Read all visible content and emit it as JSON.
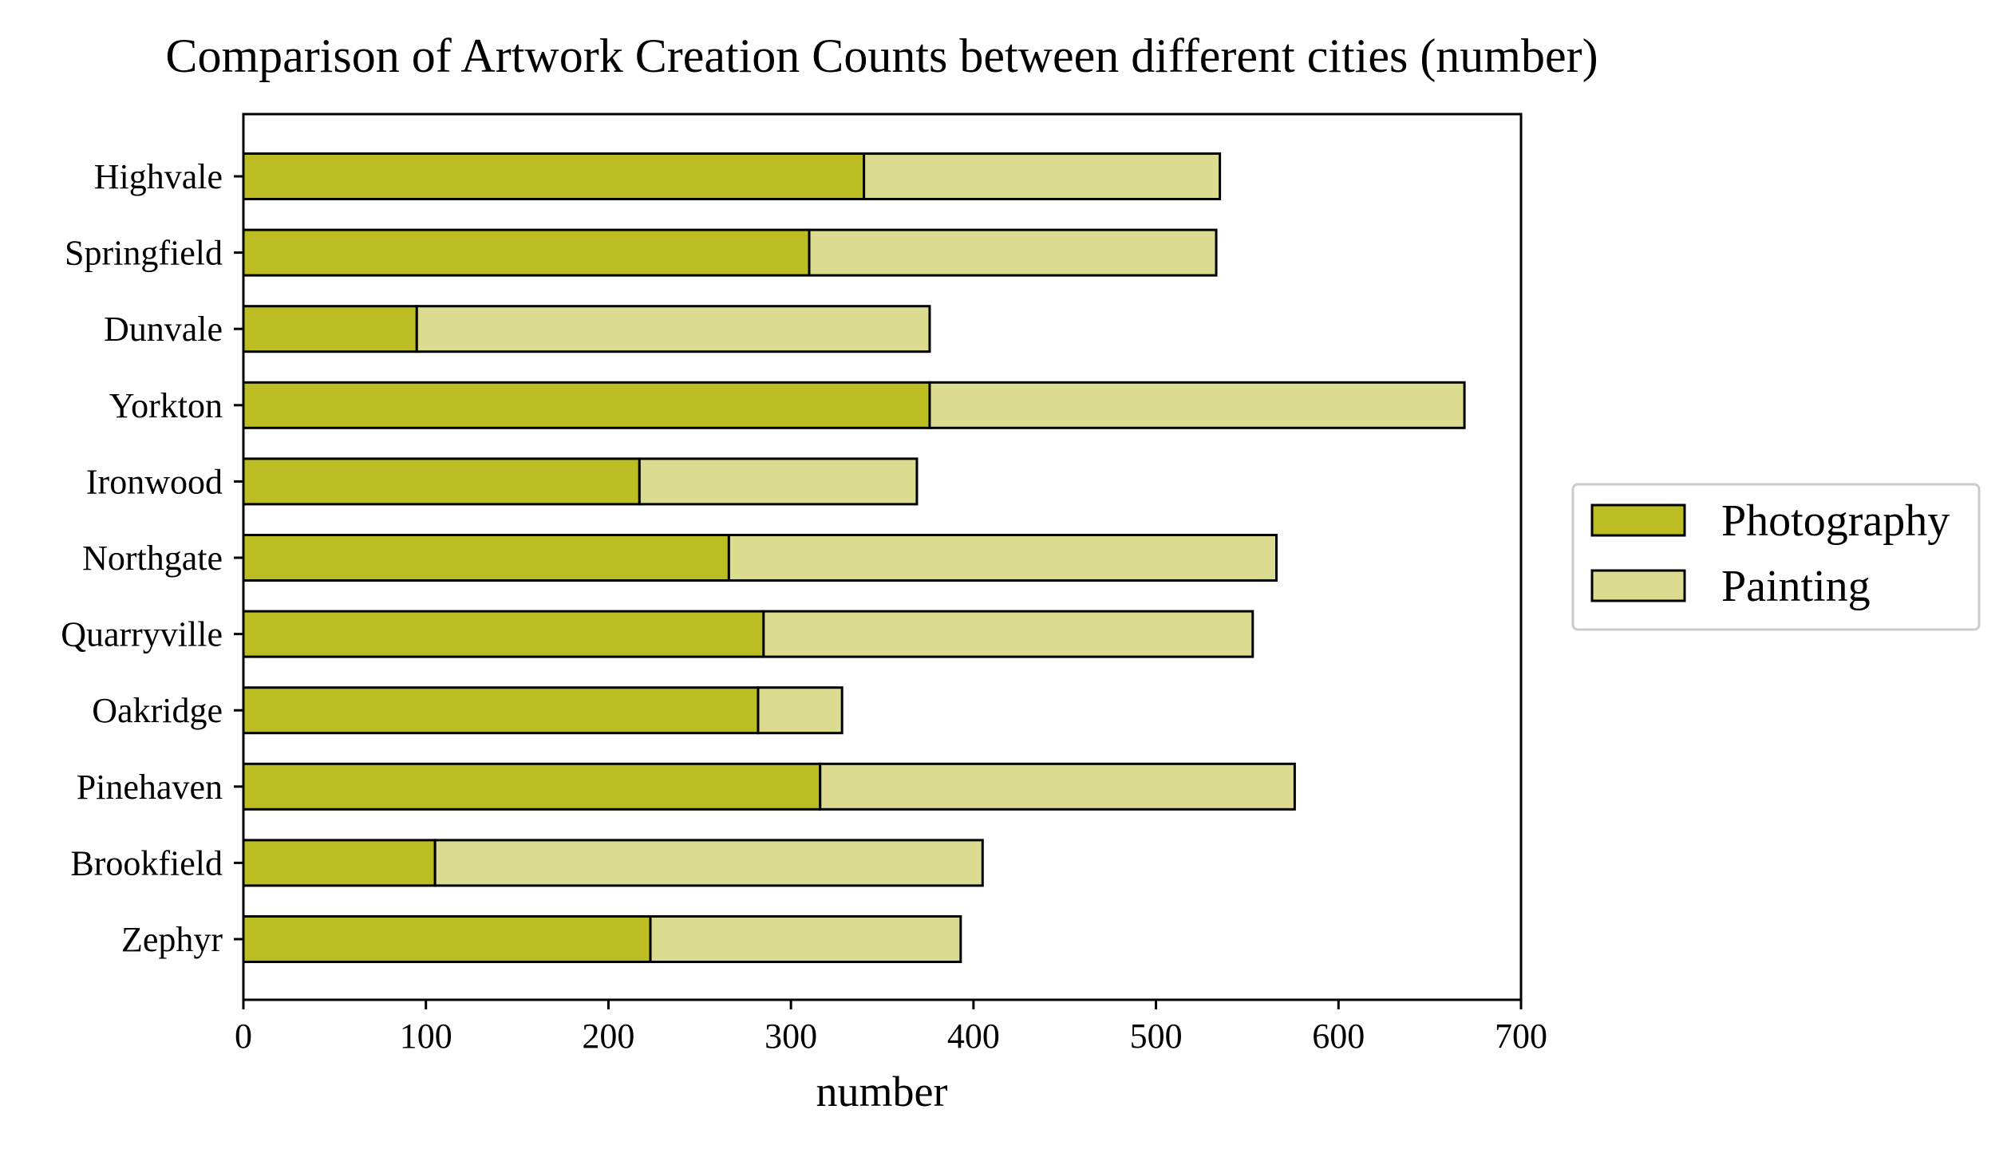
{
  "chart_data": {
    "type": "bar",
    "orientation": "horizontal",
    "stacked": true,
    "title": "Comparison of Artwork Creation Counts between different cities (number)",
    "xlabel": "number",
    "ylabel": "",
    "xlim": [
      0,
      700
    ],
    "xticks": [
      0,
      100,
      200,
      300,
      400,
      500,
      600,
      700
    ],
    "grid": false,
    "legend_position": "center-right outside",
    "categories": [
      "Highvale",
      "Springfield",
      "Dunvale",
      "Yorkton",
      "Ironwood",
      "Northgate",
      "Quarryville",
      "Oakridge",
      "Pinehaven",
      "Brookfield",
      "Zephyr"
    ],
    "series": [
      {
        "name": "Photography",
        "color": "#bcbd22",
        "values": [
          340,
          310,
          95,
          376,
          217,
          266,
          285,
          282,
          316,
          105,
          223
        ]
      },
      {
        "name": "Painting",
        "color": "#dbdc8f",
        "values": [
          195,
          223,
          281,
          293,
          152,
          300,
          268,
          46,
          260,
          300,
          170
        ]
      }
    ]
  }
}
